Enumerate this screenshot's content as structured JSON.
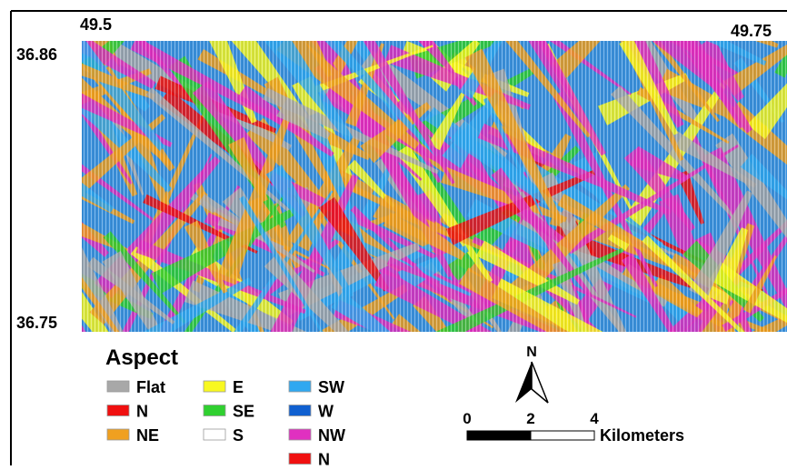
{
  "map": {
    "coordinates": {
      "top_left": "49.5",
      "top_right": "49.75",
      "left_top": "36.86",
      "left_bottom": "36.75"
    },
    "legend": {
      "title": "Aspect",
      "items": [
        {
          "label": "Flat",
          "color": "#a8a8a8"
        },
        {
          "label": "N",
          "color": "#f01010"
        },
        {
          "label": "NE",
          "color": "#f0a020"
        },
        {
          "label": "E",
          "color": "#f8f820"
        },
        {
          "label": "SE",
          "color": "#30d030"
        },
        {
          "label": "S",
          "color": "#ffffff"
        },
        {
          "label": "SW",
          "color": "#30a8f0"
        },
        {
          "label": "W",
          "color": "#1060d0"
        },
        {
          "label": "NW",
          "color": "#e030c0"
        },
        {
          "label": "N",
          "color": "#f01010"
        }
      ]
    },
    "north_arrow": {
      "label": "N"
    },
    "scale_bar": {
      "labels": [
        "0",
        "2",
        "4"
      ],
      "unit": "Kilometers"
    }
  }
}
